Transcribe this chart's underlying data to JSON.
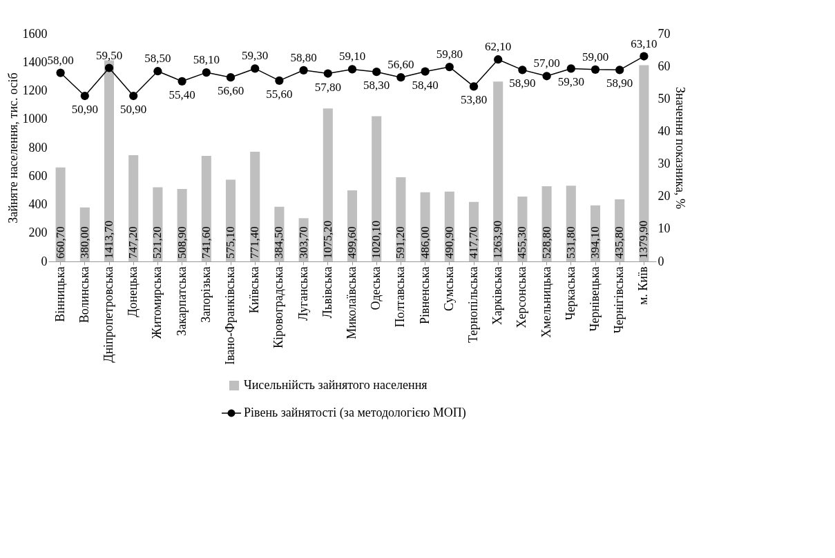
{
  "chart_data": {
    "type": "bar",
    "categories": [
      "Вінницька",
      "Волинська",
      "Дніпропетровська",
      "Донецька",
      "Житомирська",
      "Закарпатська",
      "Запорізька",
      "Івано-Франківська",
      "Київська",
      "Кіровоградська",
      "Луганська",
      "Львівська",
      "Миколаївська",
      "Одеська",
      "Полтавська",
      "Рівненська",
      "Сумська",
      "Тернопільська",
      "Харківська",
      "Херсонська",
      "Хмельницька",
      "Черкаська",
      "Чернівецька",
      "Чернігівська",
      "м. Київ"
    ],
    "ylabel": "Зайняте населення, тис. осіб",
    "y2label": "Значення показника, %",
    "ylim": [
      0,
      1600
    ],
    "yticks": [
      0,
      200,
      400,
      600,
      800,
      1000,
      1200,
      1400,
      1600
    ],
    "y2lim": [
      0,
      70
    ],
    "y2ticks": [
      0,
      10,
      20,
      30,
      40,
      50,
      60,
      70
    ],
    "grid": false,
    "legend": "bottom",
    "series": [
      {
        "name": "Чисельнійсть зайнятого населення",
        "color": "#bfbfbf",
        "values": [
          660.7,
          380.0,
          1413.7,
          747.2,
          521.2,
          508.9,
          741.6,
          575.1,
          771.4,
          384.5,
          303.7,
          1075.2,
          499.6,
          1020.1,
          591.2,
          486.0,
          490.9,
          417.7,
          1263.9,
          455.3,
          528.8,
          531.8,
          394.1,
          435.8,
          1379.9
        ],
        "value_labels": [
          "660,70",
          "380,00",
          "1413,70",
          "747,20",
          "521,20",
          "508,90",
          "741,60",
          "575,10",
          "771,40",
          "384,50",
          "303,70",
          "1075,20",
          "499,60",
          "1020,10",
          "591,20",
          "486,00",
          "490,90",
          "417,70",
          "1263,90",
          "455,30",
          "528,80",
          "531,80",
          "394,10",
          "435,80",
          "1379,90"
        ]
      },
      {
        "name": "Рівень зайнятості (за методологією МОП)",
        "type": "line",
        "axis": "y2",
        "color": "#000000",
        "marker": "circle",
        "line_style": "solid",
        "values": [
          58.0,
          50.9,
          59.5,
          50.9,
          58.5,
          55.4,
          58.1,
          56.6,
          59.3,
          55.6,
          58.8,
          57.8,
          59.1,
          58.3,
          56.6,
          58.4,
          59.8,
          53.8,
          62.1,
          58.9,
          57.0,
          59.3,
          59.0,
          58.9,
          63.1
        ],
        "value_labels": [
          "58,00",
          "50,90",
          "59,50",
          "50,90",
          "58,50",
          "55,40",
          "58,10",
          "56,60",
          "59,30",
          "55,60",
          "58,80",
          "57,80",
          "59,10",
          "58,30",
          "56,60",
          "58,40",
          "59,80",
          "53,80",
          "62,10",
          "58,90",
          "57,00",
          "59,30",
          "59,00",
          "58,90",
          "63,10"
        ]
      }
    ]
  }
}
